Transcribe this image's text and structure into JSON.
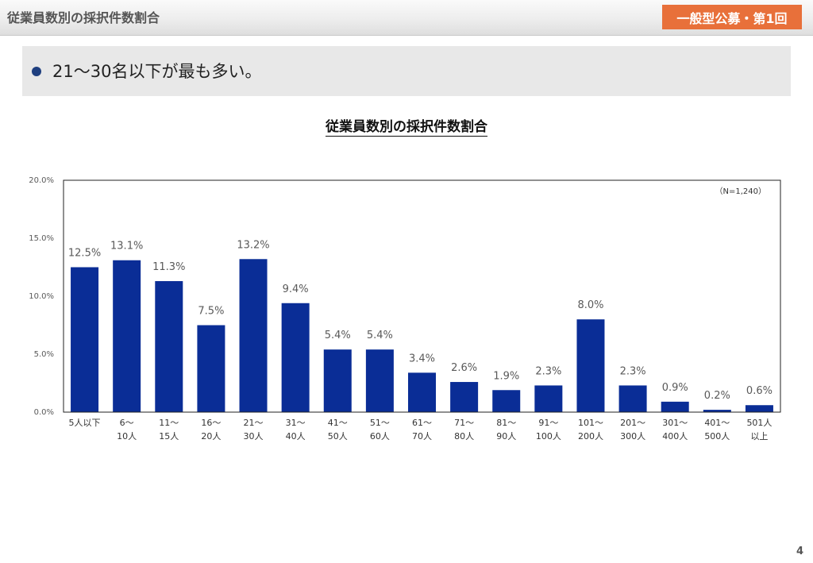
{
  "header": {
    "title": "従業員数別の採択件数割合",
    "badge": "一般型公募・第1回"
  },
  "summary": {
    "text": "21〜30名以下が最も多い。"
  },
  "page_number": "4",
  "colors": {
    "bar": "#0a2d96",
    "badge": "#e8703a",
    "bullet": "#1f3f7f"
  },
  "chart_data": {
    "type": "bar",
    "title": "従業員数別の採択件数割合",
    "note": "（N=1,240）",
    "xlabel": "",
    "ylabel": "",
    "ylim": [
      0,
      20
    ],
    "yticks": [
      "0.0%",
      "5.0%",
      "10.0%",
      "15.0%",
      "20.0%"
    ],
    "grid": false,
    "categories": [
      [
        "5人以下"
      ],
      [
        "6〜",
        "10人"
      ],
      [
        "11〜",
        "15人"
      ],
      [
        "16〜",
        "20人"
      ],
      [
        "21〜",
        "30人"
      ],
      [
        "31〜",
        "40人"
      ],
      [
        "41〜",
        "50人"
      ],
      [
        "51〜",
        "60人"
      ],
      [
        "61〜",
        "70人"
      ],
      [
        "71〜",
        "80人"
      ],
      [
        "81〜",
        "90人"
      ],
      [
        "91〜",
        "100人"
      ],
      [
        "101〜",
        "200人"
      ],
      [
        "201〜",
        "300人"
      ],
      [
        "301〜",
        "400人"
      ],
      [
        "401〜",
        "500人"
      ],
      [
        "501人",
        "以上"
      ]
    ],
    "values": [
      12.5,
      13.1,
      11.3,
      7.5,
      13.2,
      9.4,
      5.4,
      5.4,
      3.4,
      2.6,
      1.9,
      2.3,
      8.0,
      2.3,
      0.9,
      0.2,
      0.6
    ],
    "value_labels": [
      "12.5%",
      "13.1%",
      "11.3%",
      "7.5%",
      "13.2%",
      "9.4%",
      "5.4%",
      "5.4%",
      "3.4%",
      "2.6%",
      "1.9%",
      "2.3%",
      "8.0%",
      "2.3%",
      "0.9%",
      "0.2%",
      "0.6%"
    ]
  }
}
